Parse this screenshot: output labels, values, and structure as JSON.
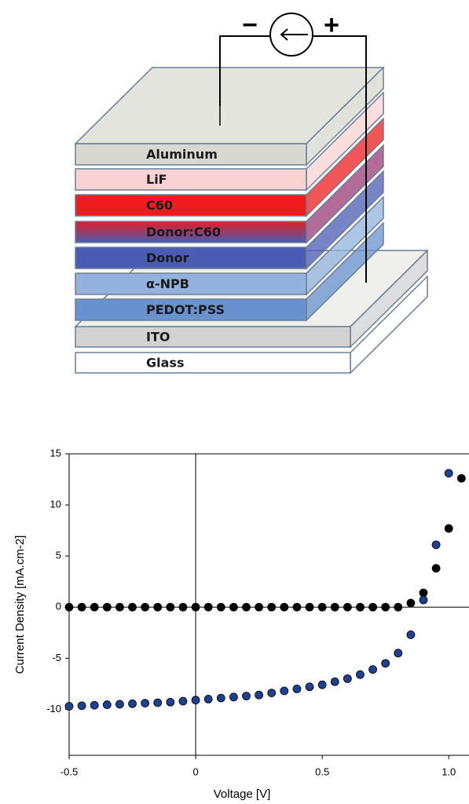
{
  "diagram": {
    "source_signs": [
      "−",
      "+"
    ],
    "upper_layers": [
      {
        "label": "Aluminum",
        "color": "#d8d8d2"
      },
      {
        "label": "LiF",
        "color": "#f8d2d2"
      },
      {
        "label": "C60",
        "color": "#ee1c1c"
      },
      {
        "label": "Donor:C60",
        "color": "#9a3a78"
      },
      {
        "label": "Donor",
        "color": "#4a5cb4"
      },
      {
        "label": "α-NPB",
        "color": "#93b3de"
      },
      {
        "label": "PEDOT:PSS",
        "color": "#6a92cf"
      }
    ],
    "lower_layers": [
      {
        "label": "ITO",
        "color": "#d2d2d2"
      },
      {
        "label": "Glass",
        "color": "#ffffff"
      }
    ]
  },
  "chart_data": {
    "type": "scatter",
    "x_label": "Voltage [V]",
    "y_label": "Current Density [mA.cm-2]",
    "xlim": [
      -0.5,
      1.08
    ],
    "ylim": [
      -14.5,
      15
    ],
    "xticks": [
      -0.5,
      0,
      0.5,
      {
        "value": 1,
        "label": "1.0"
      }
    ],
    "yticks": [
      -10,
      -5,
      0,
      5,
      10,
      15
    ],
    "x": [
      -0.5,
      -0.45,
      -0.4,
      -0.35,
      -0.3,
      -0.25,
      -0.2,
      -0.15,
      -0.1,
      -0.05,
      0,
      0.05,
      0.1,
      0.15,
      0.2,
      0.25,
      0.3,
      0.35,
      0.4,
      0.45,
      0.5,
      0.55,
      0.6,
      0.65,
      0.7,
      0.75,
      0.8,
      0.85,
      0.9,
      0.95,
      1.0,
      1.05
    ],
    "series": [
      {
        "color": "#000000",
        "values": [
          0,
          0,
          0,
          0,
          0,
          0,
          0,
          0,
          0,
          0,
          0,
          0,
          0,
          0,
          0,
          0,
          0,
          0,
          0,
          0,
          0,
          0,
          0,
          0,
          0,
          0,
          0,
          0.4,
          1.4,
          3.8,
          7.7,
          12.6
        ]
      },
      {
        "color": "#1f3f8f",
        "values": [
          -9.7,
          -9.65,
          -9.6,
          -9.55,
          -9.5,
          -9.45,
          -9.4,
          -9.35,
          -9.3,
          -9.2,
          -9.1,
          -9.0,
          -8.9,
          -8.8,
          -8.7,
          -8.6,
          -8.4,
          -8.2,
          -8.0,
          -7.8,
          -7.6,
          -7.3,
          -7.0,
          -6.6,
          -6.1,
          -5.5,
          -4.5,
          -2.7,
          0.7,
          6.1,
          13.1,
          null
        ]
      }
    ]
  }
}
